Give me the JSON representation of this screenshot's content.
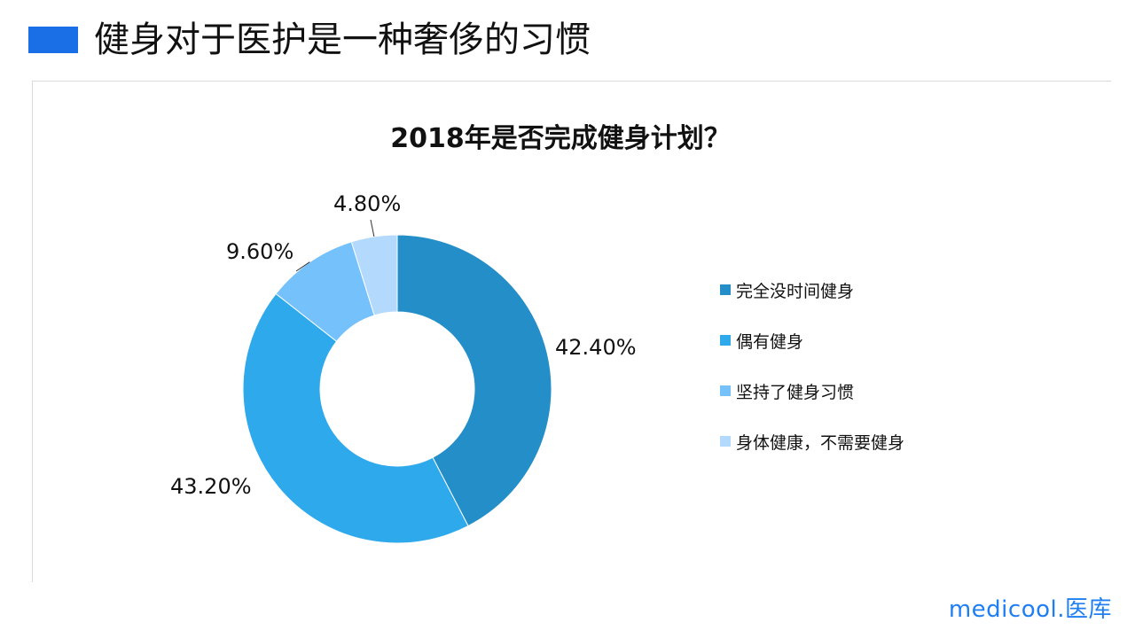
{
  "header": {
    "title": "健身对于医护是一种奢侈的习惯",
    "accent_color": "#1a6ee6"
  },
  "brand": {
    "text": "medicool.医库",
    "color": "#1f7ff2"
  },
  "chart_data": {
    "type": "pie",
    "title": "2018年是否完成健身计划？",
    "donut": true,
    "legend_position": "right",
    "slices": [
      {
        "label": "完全没时间健身",
        "value": 42.4,
        "display": "42.40%",
        "color": "#238ec8"
      },
      {
        "label": "偶有健身",
        "value": 43.2,
        "display": "43.20%",
        "color": "#2ea9ec"
      },
      {
        "label": "坚持了健身习惯",
        "value": 9.6,
        "display": "9.60%",
        "color": "#75c1fc"
      },
      {
        "label": "身体健康，不需要健身",
        "value": 4.8,
        "display": "4.80%",
        "color": "#b3dafd"
      }
    ]
  }
}
